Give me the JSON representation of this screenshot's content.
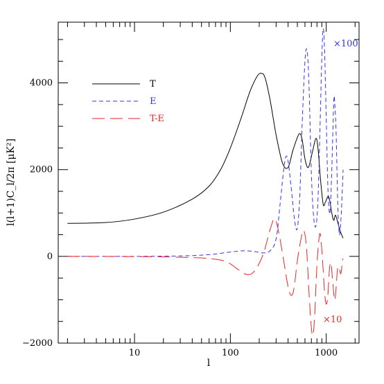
{
  "chart_data": {
    "type": "line",
    "title": "",
    "xlabel": "l",
    "ylabel": "l(l+1)C_l/2π  [μK²]",
    "xscale": "log",
    "xlim": [
      1.6,
      2200
    ],
    "ylim": [
      -2000,
      5400
    ],
    "x_ticks": [
      10,
      100,
      1000
    ],
    "x_tick_labels": [
      "10",
      "100",
      "1000"
    ],
    "y_ticks": [
      -2000,
      0,
      2000,
      4000
    ],
    "y_tick_labels": [
      "−2000",
      "0",
      "2000",
      "4000"
    ],
    "grid": false,
    "legend_position": "upper-left",
    "series": [
      {
        "name": "T",
        "color": "#000000",
        "dash": "solid",
        "points": [
          [
            2,
            760
          ],
          [
            5,
            780
          ],
          [
            10,
            860
          ],
          [
            20,
            1020
          ],
          [
            40,
            1320
          ],
          [
            60,
            1620
          ],
          [
            80,
            2020
          ],
          [
            100,
            2500
          ],
          [
            130,
            3200
          ],
          [
            160,
            3800
          ],
          [
            190,
            4150
          ],
          [
            210,
            4220
          ],
          [
            230,
            4120
          ],
          [
            260,
            3600
          ],
          [
            300,
            2800
          ],
          [
            350,
            2150
          ],
          [
            400,
            2050
          ],
          [
            450,
            2450
          ],
          [
            520,
            2820
          ],
          [
            560,
            2700
          ],
          [
            600,
            2250
          ],
          [
            650,
            2050
          ],
          [
            720,
            2420
          ],
          [
            780,
            2720
          ],
          [
            820,
            2500
          ],
          [
            870,
            1800
          ],
          [
            930,
            1200
          ],
          [
            980,
            1250
          ],
          [
            1040,
            1380
          ],
          [
            1080,
            1320
          ],
          [
            1150,
            970
          ],
          [
            1200,
            830
          ],
          [
            1250,
            950
          ],
          [
            1320,
            780
          ],
          [
            1400,
            580
          ],
          [
            1500,
            420
          ]
        ]
      },
      {
        "name": "E",
        "color": "#3333ee",
        "dash": "dashed",
        "scale_label": "×100",
        "points": [
          [
            2,
            0
          ],
          [
            10,
            0
          ],
          [
            30,
            10
          ],
          [
            60,
            40
          ],
          [
            100,
            100
          ],
          [
            140,
            130
          ],
          [
            180,
            110
          ],
          [
            220,
            80
          ],
          [
            260,
            130
          ],
          [
            300,
            400
          ],
          [
            330,
            1200
          ],
          [
            360,
            2000
          ],
          [
            380,
            2300
          ],
          [
            400,
            2200
          ],
          [
            430,
            1600
          ],
          [
            470,
            800
          ],
          [
            500,
            650
          ],
          [
            530,
            1400
          ],
          [
            560,
            3000
          ],
          [
            600,
            4500
          ],
          [
            630,
            4750
          ],
          [
            660,
            4000
          ],
          [
            700,
            1900
          ],
          [
            740,
            900
          ],
          [
            780,
            700
          ],
          [
            820,
            1300
          ],
          [
            860,
            2900
          ],
          [
            900,
            4600
          ],
          [
            930,
            5250
          ],
          [
            960,
            4800
          ],
          [
            1000,
            3200
          ],
          [
            1040,
            1600
          ],
          [
            1080,
            1000
          ],
          [
            1110,
            1200
          ],
          [
            1150,
            2200
          ],
          [
            1200,
            3600
          ],
          [
            1230,
            3500
          ],
          [
            1270,
            2800
          ],
          [
            1320,
            1200
          ],
          [
            1370,
            500
          ],
          [
            1420,
            800
          ],
          [
            1470,
            1500
          ],
          [
            1500,
            2000
          ]
        ]
      },
      {
        "name": "T-E",
        "color": "#ee2222",
        "dash": "longdash",
        "scale_label": "×10",
        "points": [
          [
            2,
            0
          ],
          [
            10,
            -5
          ],
          [
            30,
            -20
          ],
          [
            60,
            -50
          ],
          [
            90,
            -120
          ],
          [
            120,
            -300
          ],
          [
            150,
            -420
          ],
          [
            180,
            -330
          ],
          [
            220,
            50
          ],
          [
            260,
            620
          ],
          [
            290,
            870
          ],
          [
            320,
            550
          ],
          [
            360,
            -100
          ],
          [
            400,
            -700
          ],
          [
            430,
            -900
          ],
          [
            460,
            -750
          ],
          [
            500,
            -100
          ],
          [
            540,
            350
          ],
          [
            580,
            600
          ],
          [
            620,
            250
          ],
          [
            660,
            -800
          ],
          [
            700,
            -1650
          ],
          [
            730,
            -1800
          ],
          [
            760,
            -1300
          ],
          [
            800,
            -200
          ],
          [
            840,
            400
          ],
          [
            870,
            500
          ],
          [
            910,
            0
          ],
          [
            960,
            -800
          ],
          [
            1000,
            -1100
          ],
          [
            1040,
            -900
          ],
          [
            1080,
            -300
          ],
          [
            1120,
            -150
          ],
          [
            1160,
            -500
          ],
          [
            1220,
            -1000
          ],
          [
            1260,
            -800
          ],
          [
            1310,
            -300
          ],
          [
            1360,
            -250
          ],
          [
            1420,
            -400
          ],
          [
            1480,
            -100
          ],
          [
            1500,
            -50
          ]
        ]
      }
    ]
  }
}
